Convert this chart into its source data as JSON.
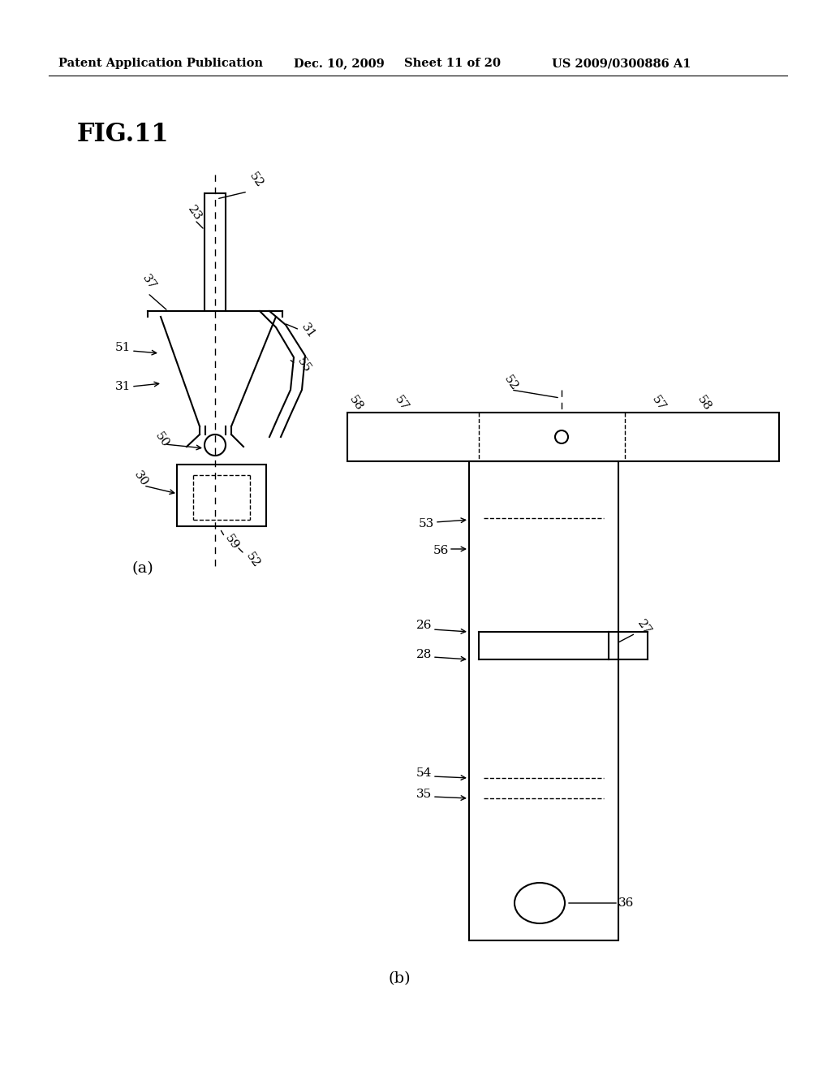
{
  "bg_color": "#ffffff",
  "header_text": "Patent Application Publication",
  "header_date": "Dec. 10, 2009",
  "header_sheet": "Sheet 11 of 20",
  "header_patent": "US 2009/0300886 A1",
  "fig_label": "FIG.11",
  "sub_a": "(a)",
  "sub_b": "(b)",
  "lw": 1.5,
  "lw_thin": 1.0,
  "fs_label": 11,
  "fs_fig": 22,
  "fs_header": 10.5,
  "fs_sub": 14
}
